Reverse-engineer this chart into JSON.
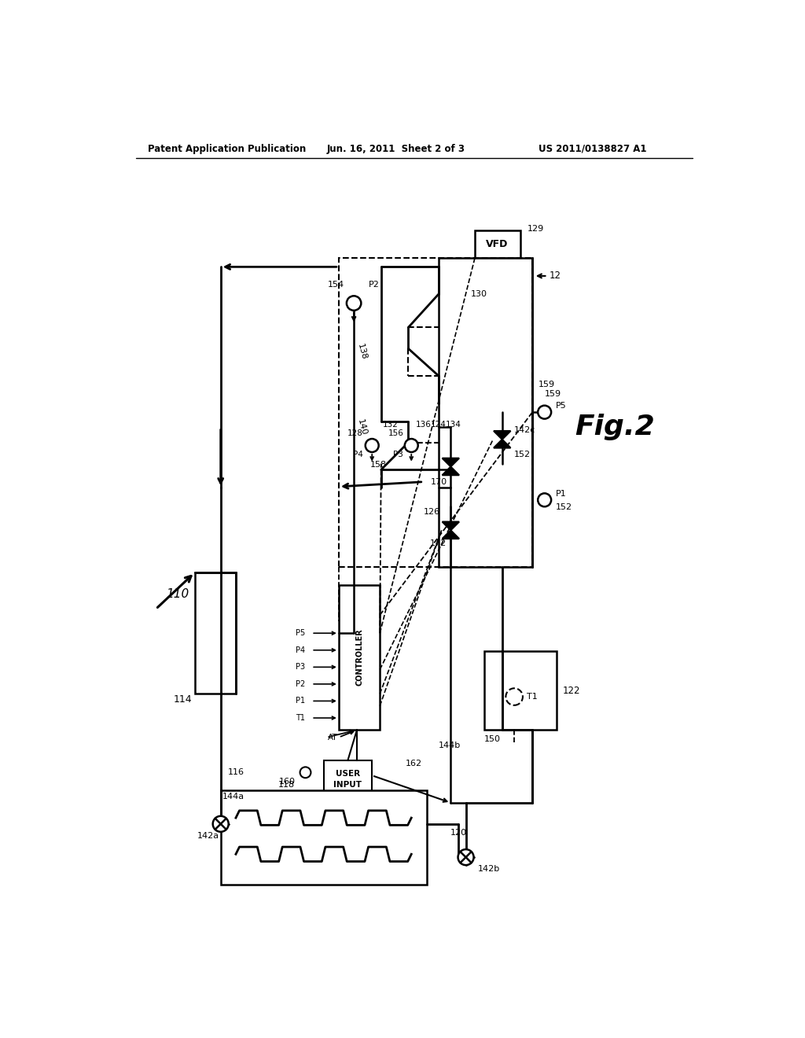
{
  "header_left": "Patent Application Publication",
  "header_mid": "Jun. 16, 2011  Sheet 2 of 3",
  "header_right": "US 2011/0138827 A1",
  "fig_label": "Fig.2",
  "bg": "#ffffff"
}
